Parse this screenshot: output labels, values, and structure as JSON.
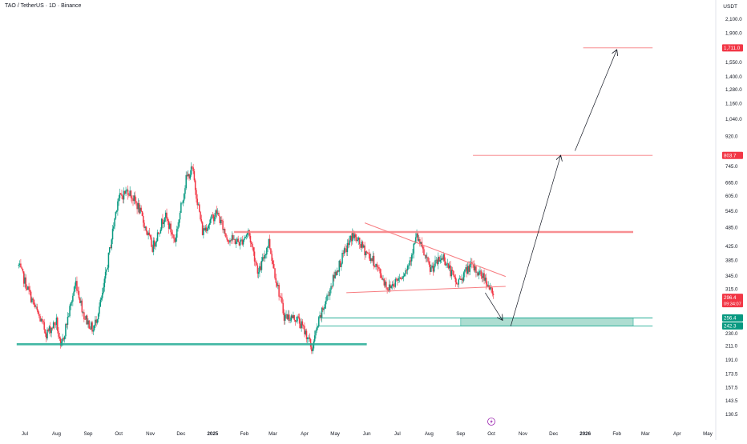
{
  "header": {
    "symbol_title": "TAO / TetherUS · 1D · Binance",
    "currency": "USDT"
  },
  "colors": {
    "up": "#089981",
    "down": "#f23645",
    "resistance": "#f77c80",
    "support": "#22ab94",
    "zone_fill": "#9fd8c9",
    "label_red": "#f23645",
    "label_green": "#089981",
    "text": "#131722"
  },
  "chart_data": {
    "type": "candlestick",
    "price_scale": "log",
    "y_ticks": [
      "2,100.0",
      "1,900.0",
      "1,711.0",
      "1,550.0",
      "1,400.0",
      "1,280.0",
      "1,160.0",
      "1,040.0",
      "920.0",
      "803.7",
      "745.0",
      "665.0",
      "605.0",
      "545.0",
      "485.0",
      "425.0",
      "385.0",
      "345.0",
      "315.0",
      "296.4",
      "256.4",
      "242.3",
      "230.0",
      "211.0",
      "191.0",
      "173.5",
      "157.5",
      "143.5",
      "130.5"
    ],
    "x_ticks": [
      "Jul",
      "Aug",
      "Sep",
      "Oct",
      "Nov",
      "Dec",
      "2025",
      "Feb",
      "Mar",
      "Apr",
      "May",
      "Jun",
      "Jul",
      "Aug",
      "Sep",
      "Oct",
      "Nov",
      "Dec",
      "2026",
      "Feb",
      "Mar",
      "Apr",
      "May"
    ],
    "price_path": [
      [
        "2024-06-25",
        370
      ],
      [
        "2024-07-10",
        280
      ],
      [
        "2024-07-22",
        230
      ],
      [
        "2024-08-01",
        250
      ],
      [
        "2024-08-05",
        205
      ],
      [
        "2024-08-20",
        330
      ],
      [
        "2024-08-28",
        260
      ],
      [
        "2024-09-06",
        235
      ],
      [
        "2024-09-15",
        300
      ],
      [
        "2024-09-30",
        590
      ],
      [
        "2024-10-10",
        630
      ],
      [
        "2024-10-20",
        560
      ],
      [
        "2024-11-03",
        420
      ],
      [
        "2024-11-15",
        530
      ],
      [
        "2024-11-25",
        440
      ],
      [
        "2024-12-06",
        680
      ],
      [
        "2024-12-12",
        730
      ],
      [
        "2024-12-22",
        470
      ],
      [
        "2025-01-05",
        540
      ],
      [
        "2025-01-15",
        450
      ],
      [
        "2025-01-28",
        435
      ],
      [
        "2025-02-05",
        470
      ],
      [
        "2025-02-15",
        350
      ],
      [
        "2025-02-25",
        440
      ],
      [
        "2025-03-03",
        350
      ],
      [
        "2025-03-12",
        260
      ],
      [
        "2025-03-25",
        255
      ],
      [
        "2025-04-04",
        225
      ],
      [
        "2025-04-08",
        205
      ],
      [
        "2025-04-15",
        250
      ],
      [
        "2025-05-01",
        350
      ],
      [
        "2025-05-18",
        460
      ],
      [
        "2025-05-28",
        420
      ],
      [
        "2025-06-08",
        380
      ],
      [
        "2025-06-22",
        315
      ],
      [
        "2025-07-10",
        360
      ],
      [
        "2025-07-20",
        455
      ],
      [
        "2025-08-02",
        360
      ],
      [
        "2025-08-15",
        395
      ],
      [
        "2025-08-28",
        325
      ],
      [
        "2025-09-10",
        370
      ],
      [
        "2025-09-25",
        340
      ],
      [
        "2025-10-03",
        296.4
      ]
    ],
    "levels": [
      {
        "price": 1711.0,
        "label": "1,711.0",
        "color": "red",
        "from": "2025-12-30",
        "to": "2026-03-08"
      },
      {
        "price": 803.7,
        "label": "803.7",
        "color": "red",
        "from": "2025-09-13",
        "to": "2026-03-08"
      },
      {
        "price": 469,
        "label": "",
        "color": "red",
        "from": "2025-01-22",
        "to": "2026-02-17"
      },
      {
        "price": 256.4,
        "label": "256.4",
        "color": "green",
        "from": "2025-04-15",
        "to": "2026-03-08"
      },
      {
        "price": 242.3,
        "label": "242.3",
        "color": "green",
        "from": "2025-04-15",
        "to": "2026-03-08"
      },
      {
        "price": 213,
        "label": "",
        "color": "green",
        "from": "2024-06-23",
        "to": "2025-06-01"
      }
    ],
    "current_price": {
      "value": 296.4,
      "label": "296.4",
      "countdown": "09:34:07"
    },
    "demand_zone": {
      "from": "2025-09-01",
      "to": "2026-02-17",
      "top": 256.4,
      "bottom": 242.3
    },
    "triangle": {
      "upper": [
        [
          "2025-05-30",
          500
        ],
        [
          "2025-10-15",
          343
        ]
      ],
      "lower": [
        [
          "2025-05-12",
          306
        ],
        [
          "2025-10-15",
          320
        ]
      ]
    },
    "projection_arrows": [
      [
        [
          "2025-09-25",
          306
        ],
        [
          "2025-10-12",
          252
        ]
      ],
      [
        [
          "2025-10-20",
          242
        ],
        [
          "2025-12-08",
          803.7
        ]
      ],
      [
        [
          "2025-12-22",
          830
        ],
        [
          "2026-02-01",
          1690
        ]
      ]
    ]
  }
}
